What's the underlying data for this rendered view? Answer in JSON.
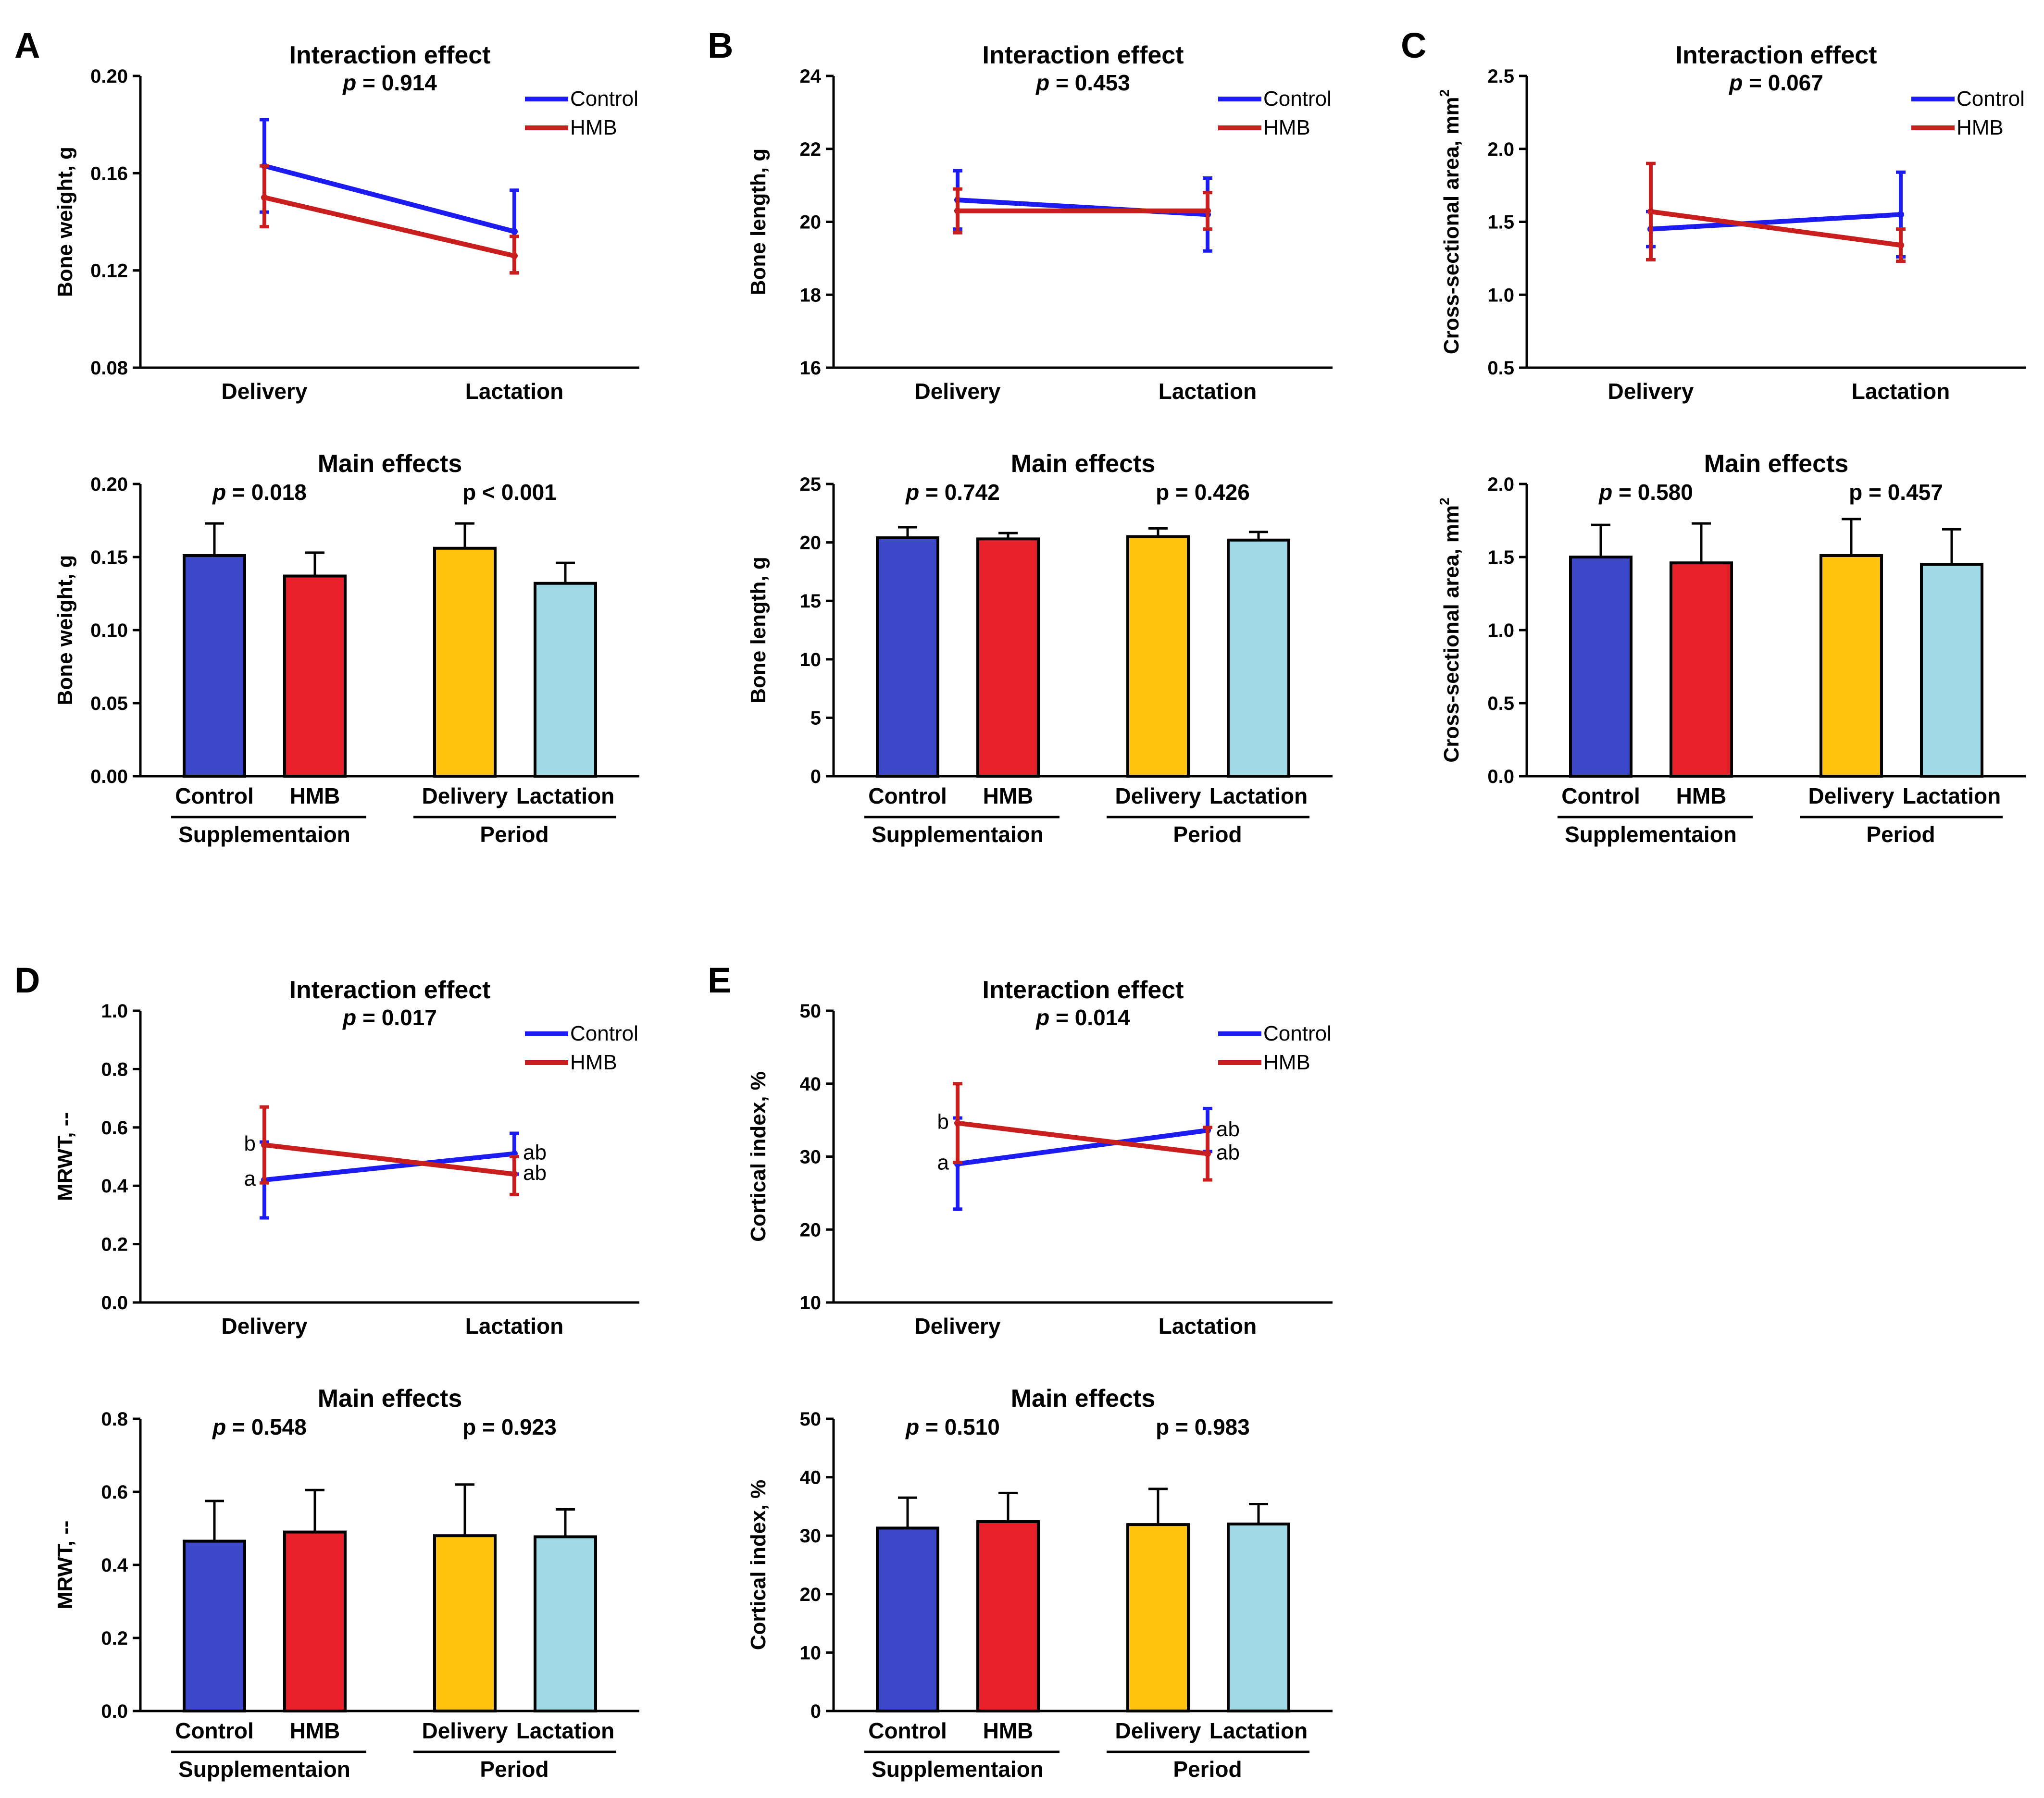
{
  "figure": {
    "series_colors": {
      "Control": "#1c1cf0",
      "HMB": "#c81e1e"
    },
    "bar_colors": [
      "#3d48c8",
      "#e8202a",
      "#ffc20e",
      "#9fd9e6"
    ]
  },
  "chart_data": [
    {
      "panel": "A",
      "type": "line",
      "kind": "interaction",
      "title": "Interaction effect",
      "p_label": "p",
      "p_text": " = 0.914",
      "ylabel": "Bone weight, g",
      "ylim": [
        0.08,
        0.2
      ],
      "yticks": [
        "0.08",
        "0.12",
        "0.16",
        "0.20"
      ],
      "ytick_values": [
        0.08,
        0.12,
        0.16,
        0.2
      ],
      "categories": [
        "Delivery",
        "Lactation"
      ],
      "series": [
        {
          "name": "Control",
          "values": [
            0.163,
            0.136
          ],
          "upper": [
            0.182,
            0.153
          ],
          "lower": [
            0.144,
            0.119
          ],
          "labels": [
            "",
            ""
          ]
        },
        {
          "name": "HMB",
          "values": [
            0.15,
            0.126
          ],
          "upper": [
            0.163,
            0.134
          ],
          "lower": [
            0.138,
            0.119
          ],
          "labels": [
            "",
            ""
          ]
        }
      ]
    },
    {
      "panel": "A",
      "type": "bar",
      "kind": "main",
      "title": "Main effects",
      "ylabel": "Bone weight, g",
      "ylim": [
        0,
        0.2
      ],
      "yticks": [
        "0.00",
        "0.05",
        "0.10",
        "0.15",
        "0.20"
      ],
      "ytick_values": [
        0,
        0.05,
        0.1,
        0.15,
        0.2
      ],
      "categories": [
        "Control",
        "HMB",
        "Delivery",
        "Lactation"
      ],
      "values": [
        0.151,
        0.137,
        0.156,
        0.132
      ],
      "errors": [
        0.022,
        0.016,
        0.017,
        0.014
      ],
      "groups": [
        {
          "name": "Supplementaion",
          "p_label": "p",
          "p_text": " = 0.018"
        },
        {
          "name": "Period",
          "p_label": "p",
          "p_text": " < 0.001"
        }
      ]
    },
    {
      "panel": "B",
      "type": "line",
      "kind": "interaction",
      "title": "Interaction effect",
      "p_label": "p",
      "p_text": " = 0.453",
      "ylabel": "Bone length, g",
      "ylim": [
        16,
        24
      ],
      "yticks": [
        "16",
        "18",
        "20",
        "22",
        "24"
      ],
      "ytick_values": [
        16,
        18,
        20,
        22,
        24
      ],
      "categories": [
        "Delivery",
        "Lactation"
      ],
      "series": [
        {
          "name": "Control",
          "values": [
            20.6,
            20.2
          ],
          "upper": [
            21.4,
            21.2
          ],
          "lower": [
            19.8,
            19.2
          ],
          "labels": [
            "",
            ""
          ]
        },
        {
          "name": "HMB",
          "values": [
            20.3,
            20.3
          ],
          "upper": [
            20.9,
            20.8
          ],
          "lower": [
            19.7,
            19.8
          ],
          "labels": [
            "",
            ""
          ]
        }
      ]
    },
    {
      "panel": "B",
      "type": "bar",
      "kind": "main",
      "title": "Main effects",
      "ylabel": "Bone length, g",
      "ylim": [
        0,
        25
      ],
      "yticks": [
        "0",
        "5",
        "10",
        "15",
        "20",
        "25"
      ],
      "ytick_values": [
        0,
        5,
        10,
        15,
        20,
        25
      ],
      "categories": [
        "Control",
        "HMB",
        "Delivery",
        "Lactation"
      ],
      "values": [
        20.4,
        20.3,
        20.5,
        20.2
      ],
      "errors": [
        0.9,
        0.5,
        0.7,
        0.7
      ],
      "groups": [
        {
          "name": "Supplementaion",
          "p_label": "p",
          "p_text": " = 0.742"
        },
        {
          "name": "Period",
          "p_label": "p",
          "p_text": " = 0.426"
        }
      ]
    },
    {
      "panel": "C",
      "type": "line",
      "kind": "interaction",
      "title": "Interaction effect",
      "p_label": "p",
      "p_text": " = 0.067",
      "ylabel": "Cross-sectional area, mm",
      "ylabel_sup": "2",
      "ylim": [
        0.5,
        2.5
      ],
      "yticks": [
        "0.5",
        "1.0",
        "1.5",
        "2.0",
        "2.5"
      ],
      "ytick_values": [
        0.5,
        1.0,
        1.5,
        2.0,
        2.5
      ],
      "categories": [
        "Delivery",
        "Lactation"
      ],
      "series": [
        {
          "name": "Control",
          "values": [
            1.45,
            1.55
          ],
          "upper": [
            1.57,
            1.84
          ],
          "lower": [
            1.33,
            1.26
          ],
          "labels": [
            "",
            ""
          ]
        },
        {
          "name": "HMB",
          "values": [
            1.57,
            1.34
          ],
          "upper": [
            1.9,
            1.45
          ],
          "lower": [
            1.24,
            1.23
          ],
          "labels": [
            "",
            ""
          ]
        }
      ]
    },
    {
      "panel": "C",
      "type": "bar",
      "kind": "main",
      "title": "Main effects",
      "ylabel": "Cross-sectional area, mm",
      "ylabel_sup": "2",
      "ylim": [
        0,
        2.0
      ],
      "yticks": [
        "0.0",
        "0.5",
        "1.0",
        "1.5",
        "2.0"
      ],
      "ytick_values": [
        0,
        0.5,
        1.0,
        1.5,
        2.0
      ],
      "categories": [
        "Control",
        "HMB",
        "Delivery",
        "Lactation"
      ],
      "values": [
        1.5,
        1.46,
        1.51,
        1.45
      ],
      "errors": [
        0.22,
        0.27,
        0.25,
        0.24
      ],
      "groups": [
        {
          "name": "Supplementaion",
          "p_label": "p",
          "p_text": " = 0.580"
        },
        {
          "name": "Period",
          "p_label": "p",
          "p_text": " = 0.457"
        }
      ]
    },
    {
      "panel": "D",
      "type": "line",
      "kind": "interaction",
      "title": "Interaction effect",
      "p_label": "p",
      "p_text": " = 0.017",
      "ylabel": "MRWT, --",
      "ylim": [
        0,
        1.0
      ],
      "yticks": [
        "0.0",
        "0.2",
        "0.4",
        "0.6",
        "0.8",
        "1.0"
      ],
      "ytick_values": [
        0,
        0.2,
        0.4,
        0.6,
        0.8,
        1.0
      ],
      "categories": [
        "Delivery",
        "Lactation"
      ],
      "series": [
        {
          "name": "Control",
          "values": [
            0.42,
            0.51
          ],
          "upper": [
            0.55,
            0.58
          ],
          "lower": [
            0.29,
            0.44
          ],
          "labels": [
            "a",
            "ab"
          ]
        },
        {
          "name": "HMB",
          "values": [
            0.54,
            0.44
          ],
          "upper": [
            0.67,
            0.5
          ],
          "lower": [
            0.41,
            0.37
          ],
          "labels": [
            "b",
            "ab"
          ]
        }
      ]
    },
    {
      "panel": "D",
      "type": "bar",
      "kind": "main",
      "title": "Main effects",
      "ylabel": "MRWT, --",
      "ylim": [
        0,
        0.8
      ],
      "yticks": [
        "0.0",
        "0.2",
        "0.4",
        "0.6",
        "0.8"
      ],
      "ytick_values": [
        0,
        0.2,
        0.4,
        0.6,
        0.8
      ],
      "categories": [
        "Control",
        "HMB",
        "Delivery",
        "Lactation"
      ],
      "values": [
        0.465,
        0.49,
        0.48,
        0.477
      ],
      "errors": [
        0.11,
        0.115,
        0.14,
        0.075
      ],
      "groups": [
        {
          "name": "Supplementaion",
          "p_label": "p",
          "p_text": " = 0.548"
        },
        {
          "name": "Period",
          "p_label": "p",
          "p_text": " = 0.923"
        }
      ]
    },
    {
      "panel": "E",
      "type": "line",
      "kind": "interaction",
      "title": "Interaction effect",
      "p_label": "p",
      "p_text": " = 0.014",
      "ylabel": "Cortical index, %",
      "ylim": [
        10,
        50
      ],
      "yticks": [
        "10",
        "20",
        "30",
        "40",
        "50"
      ],
      "ytick_values": [
        10,
        20,
        30,
        40,
        50
      ],
      "categories": [
        "Delivery",
        "Lactation"
      ],
      "series": [
        {
          "name": "Control",
          "values": [
            29.0,
            33.6
          ],
          "upper": [
            35.3,
            36.6
          ],
          "lower": [
            22.8,
            30.7
          ],
          "labels": [
            "a",
            "ab"
          ]
        },
        {
          "name": "HMB",
          "values": [
            34.6,
            30.4
          ],
          "upper": [
            40.0,
            34.0
          ],
          "lower": [
            29.2,
            26.8
          ],
          "labels": [
            "b",
            "ab"
          ]
        }
      ]
    },
    {
      "panel": "E",
      "type": "bar",
      "kind": "main",
      "title": "Main effects",
      "ylabel": "Cortical index, %",
      "ylim": [
        0,
        50
      ],
      "yticks": [
        "0",
        "10",
        "20",
        "30",
        "40",
        "50"
      ],
      "ytick_values": [
        0,
        10,
        20,
        30,
        40,
        50
      ],
      "categories": [
        "Control",
        "HMB",
        "Delivery",
        "Lactation"
      ],
      "values": [
        31.3,
        32.4,
        31.9,
        32.0
      ],
      "errors": [
        5.2,
        4.9,
        6.1,
        3.4
      ],
      "groups": [
        {
          "name": "Supplementaion",
          "p_label": "p",
          "p_text": " = 0.510"
        },
        {
          "name": "Period",
          "p_label": "p",
          "p_text": " = 0.983"
        }
      ]
    }
  ]
}
